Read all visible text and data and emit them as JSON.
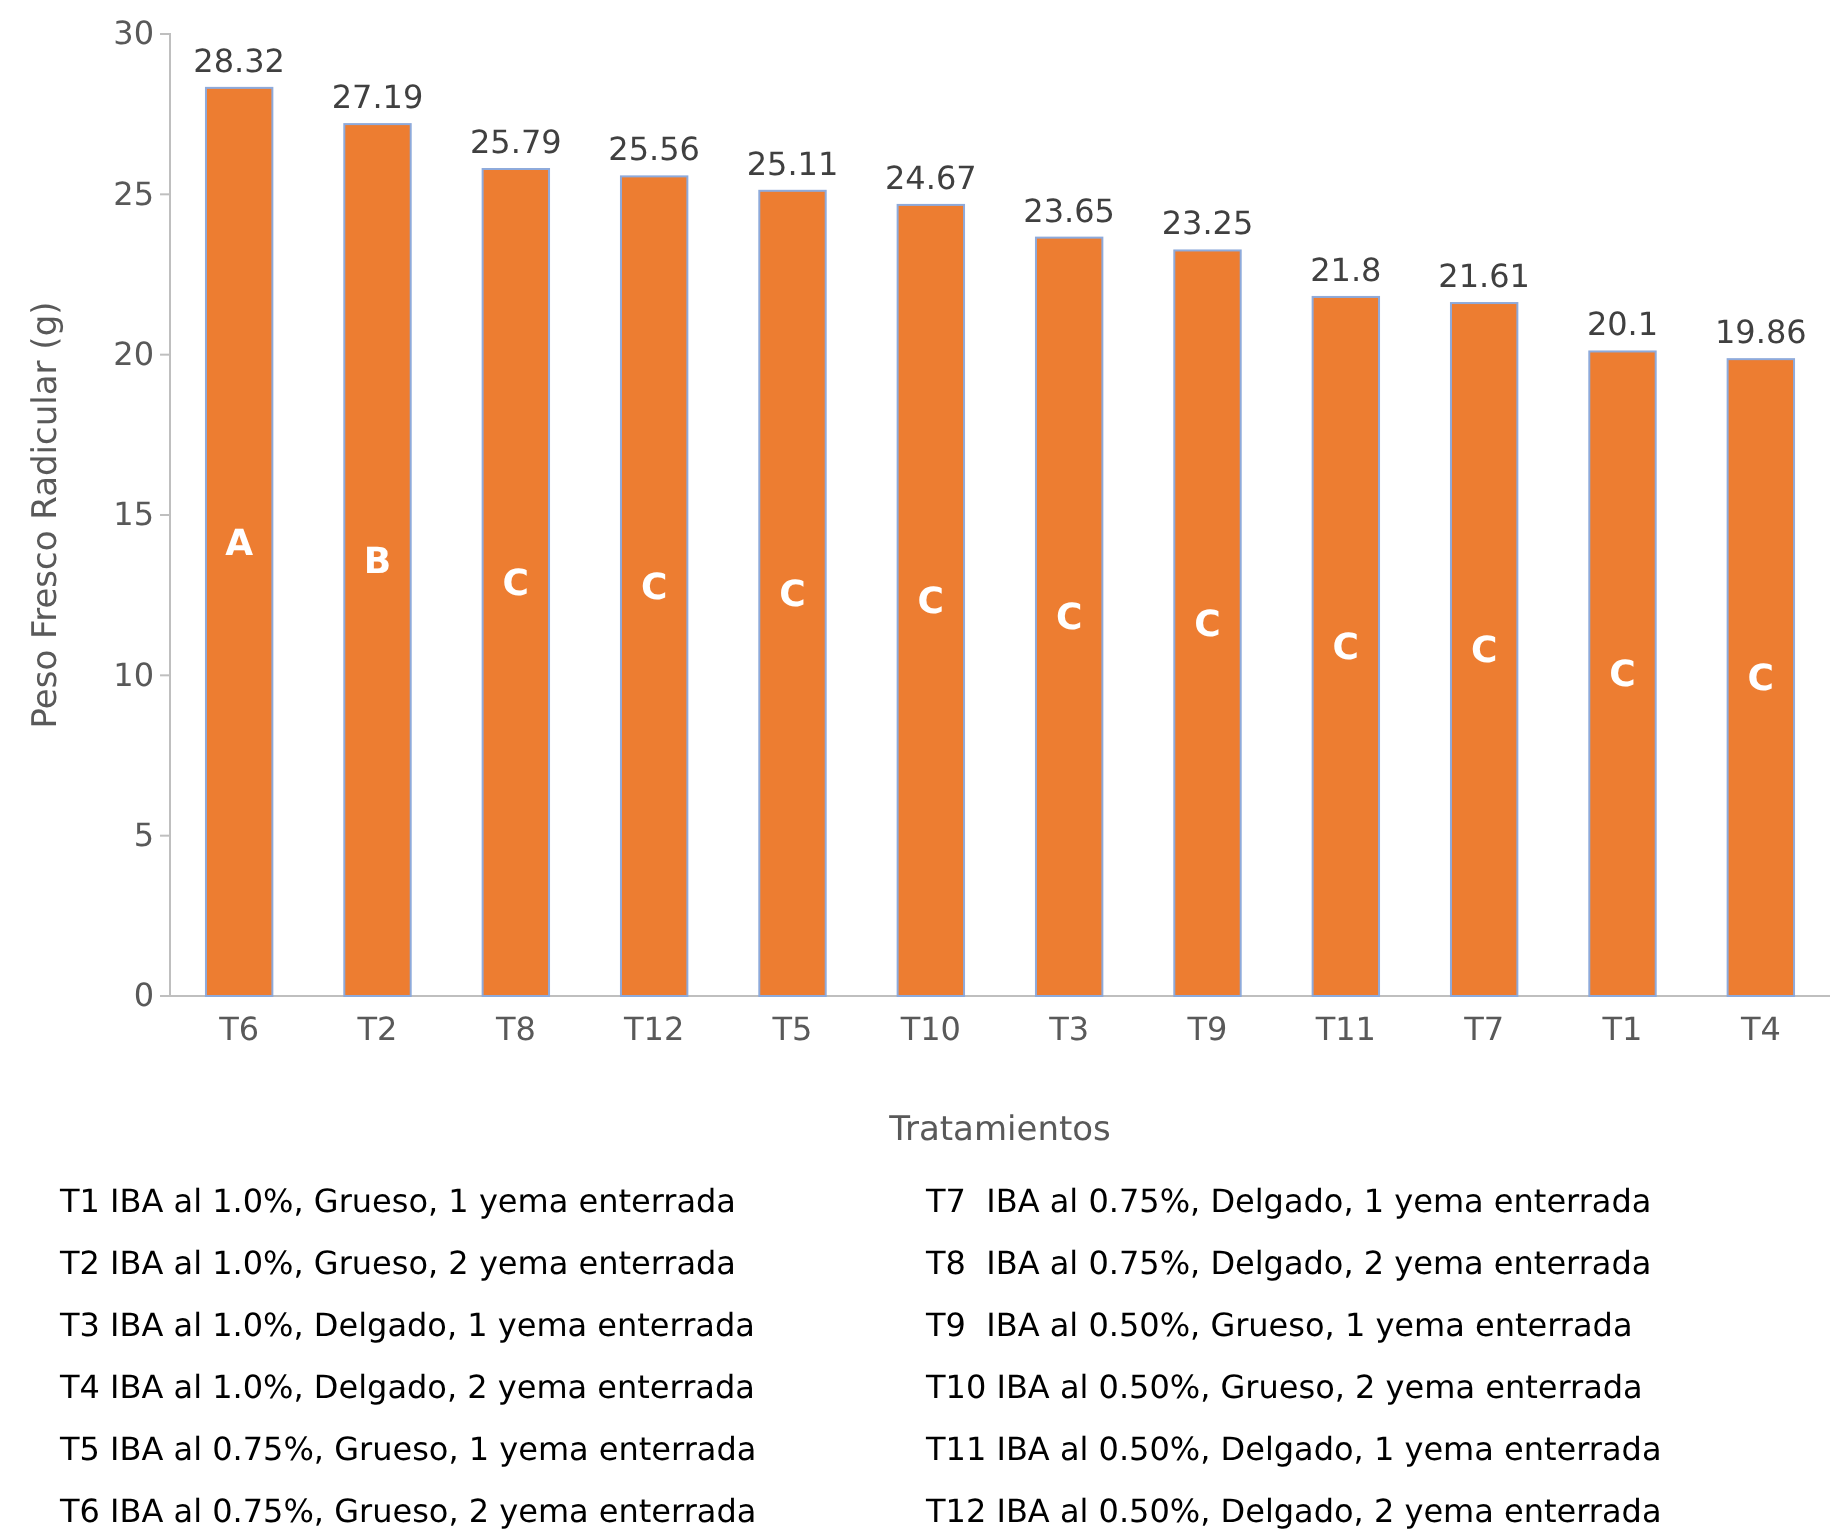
{
  "chart_data": {
    "type": "bar",
    "xlabel": "Tratamientos",
    "ylabel": "Peso Fresco Radicular (g)",
    "categories": [
      "T6",
      "T2",
      "T8",
      "T12",
      "T5",
      "T10",
      "T3",
      "T9",
      "T11",
      "T7",
      "T1",
      "T4"
    ],
    "values": [
      28.32,
      27.19,
      25.79,
      25.56,
      25.11,
      24.67,
      23.65,
      23.25,
      21.8,
      21.61,
      20.1,
      19.86
    ],
    "color": "#ed7d31",
    "ylim": [
      0,
      30
    ],
    "yticks": [
      0,
      5,
      10,
      15,
      20,
      25,
      30
    ],
    "data_labels": true,
    "annotations": [
      "A",
      "B",
      "C",
      "C",
      "C",
      "C",
      "C",
      "C",
      "C",
      "C",
      "C",
      "C",
      "T1 IBA al 1.0%, Grueso, 1 yema enterrada",
      "T2 IBA al 1.0%, Grueso, 2 yema enterrada",
      "T3 IBA al 1.0%, Delgado, 1 yema enterrada",
      "T4 IBA al 1.0%, Delgado, 2 yema enterrada",
      "T5 IBA al 0.75%, Grueso, 1 yema enterrada",
      "T6 IBA al 0.75%, Grueso, 2 yema enterrada",
      "T7  IBA al 0.75%, Delgado, 1 yema enterrada",
      "T8  IBA al 0.75%, Delgado, 2 yema enterrada",
      "T9  IBA al 0.50%, Grueso, 1 yema enterrada",
      "T10 IBA al 0.50%, Grueso, 2 yema enterrada",
      "T11 IBA al 0.50%, Delgado, 1 yema enterrada",
      "T12 IBA al 0.50%, Delgado, 2 yema enterrada"
    ]
  }
}
